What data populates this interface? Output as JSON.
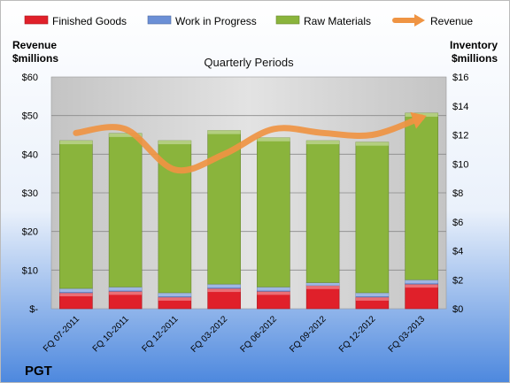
{
  "company": "PGT",
  "chart_data": {
    "type": "bar",
    "stacked": true,
    "subtitle": "Quarterly Periods",
    "left_axis_title": [
      "Revenue",
      "$millions"
    ],
    "right_axis_title": [
      "Inventory",
      "$millions"
    ],
    "categories": [
      "FQ 07-2011",
      "FQ 10-2011",
      "FQ 12-2011",
      "FQ 03-2012",
      "FQ 06-2012",
      "FQ 09-2012",
      "FQ 12-2012",
      "FQ 03-2013"
    ],
    "series": [
      {
        "name": "Finished Goods",
        "axis": "right",
        "color": "#e0202a",
        "values": [
          1.1,
          1.2,
          0.8,
          1.4,
          1.2,
          1.6,
          0.8,
          1.7
        ]
      },
      {
        "name": "Work in Progress",
        "axis": "right",
        "color": "#6b8fd6",
        "values": [
          0.3,
          0.3,
          0.3,
          0.3,
          0.3,
          0.2,
          0.3,
          0.3
        ]
      },
      {
        "name": "Raw Materials",
        "axis": "right",
        "color": "#8ab43c",
        "values": [
          10.2,
          10.6,
          10.5,
          10.6,
          10.3,
          9.8,
          10.4,
          11.5
        ]
      },
      {
        "name": "Revenue",
        "axis": "left",
        "type": "line",
        "color": "#ef9443",
        "values": [
          45.5,
          46.5,
          36,
          40,
          46.5,
          45.5,
          45,
          49.5
        ]
      }
    ],
    "left_axis": {
      "min": 0,
      "max": 60,
      "step": 10,
      "tick_labels": [
        "$-",
        "$10",
        "$20",
        "$30",
        "$40",
        "$50",
        "$60"
      ]
    },
    "right_axis": {
      "min": 0,
      "max": 16,
      "step": 2,
      "tick_labels": [
        "$0",
        "$2",
        "$4",
        "$6",
        "$8",
        "$10",
        "$12",
        "$14",
        "$16"
      ]
    },
    "legend_position": "top",
    "grid": true
  }
}
